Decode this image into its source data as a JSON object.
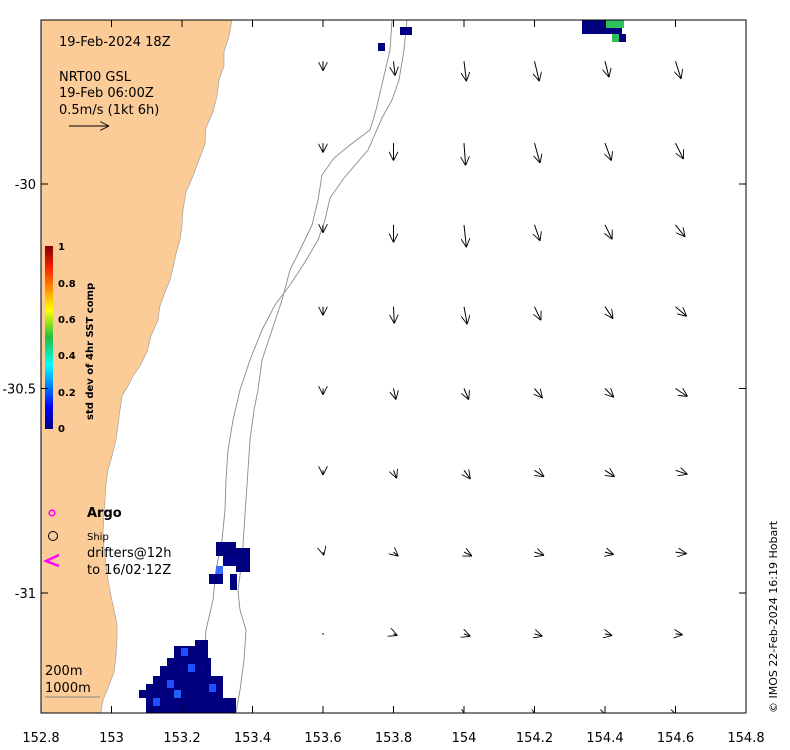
{
  "header": {
    "datetime": "19-Feb-2024 18Z",
    "product": "NRT00 GSL",
    "product_time": "19-Feb 06:00Z",
    "scale_label": "0.5m/s (1kt 6h)"
  },
  "colorbar": {
    "title": "std dev of 4hr SST comp",
    "ticks": [
      "1",
      "0.8",
      "0.6",
      "0.4",
      "0.2",
      "0"
    ]
  },
  "legend": {
    "argo": "Argo",
    "ship": "Ship",
    "drifters_line1": "drifters@12h",
    "drifters_line2": "to 16/02·12Z",
    "contour_200": "200m",
    "contour_1000": "1000m"
  },
  "axes": {
    "x_ticks": [
      "152.8",
      "153",
      "153.2",
      "153.4",
      "153.6",
      "153.8",
      "154",
      "154.2",
      "154.4",
      "154.6",
      "154.8"
    ],
    "y_ticks": [
      "-30",
      "-30.5",
      "-31"
    ],
    "xlim": [
      152.8,
      154.8
    ],
    "ylim": [
      -31.3,
      -29.6
    ]
  },
  "credit": "© IMOS 22-Feb-2024 16:19 Hobart",
  "colors": {
    "land": "#fbcb98",
    "sea": "#ffffff",
    "argo": "#ff00ff",
    "drifter": "#ff00ff",
    "sst_low": "#000080",
    "sst_mid": "#3a8cff",
    "sst_green": "#25c05a"
  },
  "current_vectors": {
    "units": "degrees lon/lat per m/s (0.5 m/s reference arrow)",
    "lon": [
      153.6,
      153.8,
      154.0,
      154.2,
      154.4,
      154.6
    ],
    "lat": [
      -29.7,
      -29.9,
      -30.1,
      -30.3,
      -30.5,
      -30.7,
      -30.9,
      -31.1,
      -31.3
    ],
    "u_m_s": [
      [
        0.0,
        0.02,
        0.03,
        0.06,
        0.05,
        0.07
      ],
      [
        0.0,
        0.0,
        0.02,
        0.07,
        0.08,
        0.1
      ],
      [
        0.0,
        0.0,
        0.03,
        0.07,
        0.09,
        0.12
      ],
      [
        0.0,
        0.01,
        0.04,
        0.08,
        0.1,
        0.14
      ],
      [
        0.0,
        0.03,
        0.06,
        0.1,
        0.11,
        0.15
      ],
      [
        0.0,
        0.04,
        0.08,
        0.12,
        0.12,
        0.15
      ],
      [
        0.01,
        0.06,
        0.1,
        0.12,
        0.11,
        0.14
      ],
      [
        0.0,
        0.05,
        0.08,
        0.1,
        0.09,
        0.09
      ],
      [
        0.0,
        0.02,
        0.03,
        0.04,
        0.03,
        0.03
      ]
    ],
    "v_m_s": [
      [
        -0.12,
        -0.18,
        -0.25,
        -0.25,
        -0.2,
        -0.22
      ],
      [
        -0.12,
        -0.22,
        -0.28,
        -0.25,
        -0.22,
        -0.2
      ],
      [
        -0.1,
        -0.22,
        -0.28,
        -0.2,
        -0.18,
        -0.15
      ],
      [
        -0.11,
        -0.21,
        -0.22,
        -0.17,
        -0.15,
        -0.12
      ],
      [
        -0.08,
        -0.14,
        -0.14,
        -0.12,
        -0.11,
        -0.1
      ],
      [
        -0.06,
        -0.1,
        -0.11,
        -0.08,
        -0.08,
        -0.05
      ],
      [
        -0.04,
        -0.05,
        -0.05,
        -0.04,
        -0.03,
        -0.02
      ],
      [
        -0.01,
        -0.02,
        -0.03,
        -0.03,
        -0.02,
        -0.01
      ],
      [
        -0.01,
        -0.01,
        -0.02,
        -0.02,
        -0.01,
        -0.01
      ]
    ]
  }
}
